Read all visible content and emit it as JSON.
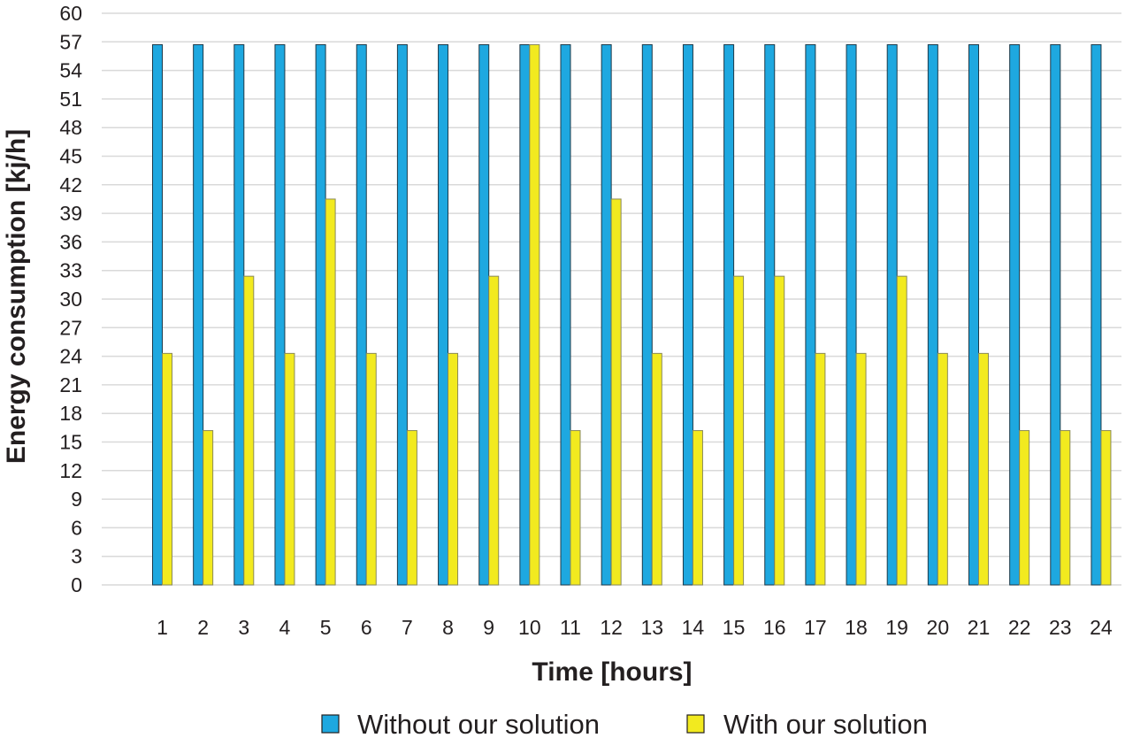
{
  "chart_data": {
    "type": "bar",
    "title": "",
    "xlabel": "Time [hours]",
    "ylabel": "Energy consumption [kj/h]",
    "ylim": [
      0,
      60
    ],
    "yticks": [
      0,
      3,
      6,
      9,
      12,
      15,
      18,
      21,
      24,
      27,
      30,
      33,
      36,
      39,
      42,
      45,
      48,
      51,
      54,
      57,
      60
    ],
    "grid": true,
    "legend_position": "bottom",
    "categories": [
      "1",
      "2",
      "3",
      "4",
      "5",
      "6",
      "7",
      "8",
      "9",
      "10",
      "11",
      "12",
      "13",
      "14",
      "15",
      "16",
      "17",
      "18",
      "19",
      "20",
      "21",
      "22",
      "23",
      "24"
    ],
    "series": [
      {
        "name": "Without our solution",
        "color": "#1ea8e0",
        "values": [
          56.7,
          56.7,
          56.7,
          56.7,
          56.7,
          56.7,
          56.7,
          56.7,
          56.7,
          56.7,
          56.7,
          56.7,
          56.7,
          56.7,
          56.7,
          56.7,
          56.7,
          56.7,
          56.7,
          56.7,
          56.7,
          56.7,
          56.7,
          56.7
        ]
      },
      {
        "name": "With our solution",
        "color": "#f2ea1f",
        "values": [
          24.3,
          16.2,
          32.4,
          24.3,
          40.5,
          24.3,
          16.2,
          24.3,
          32.4,
          56.7,
          16.2,
          40.5,
          24.3,
          16.2,
          32.4,
          32.4,
          24.3,
          24.3,
          32.4,
          24.3,
          24.3,
          16.2,
          16.2,
          16.2
        ]
      }
    ]
  }
}
